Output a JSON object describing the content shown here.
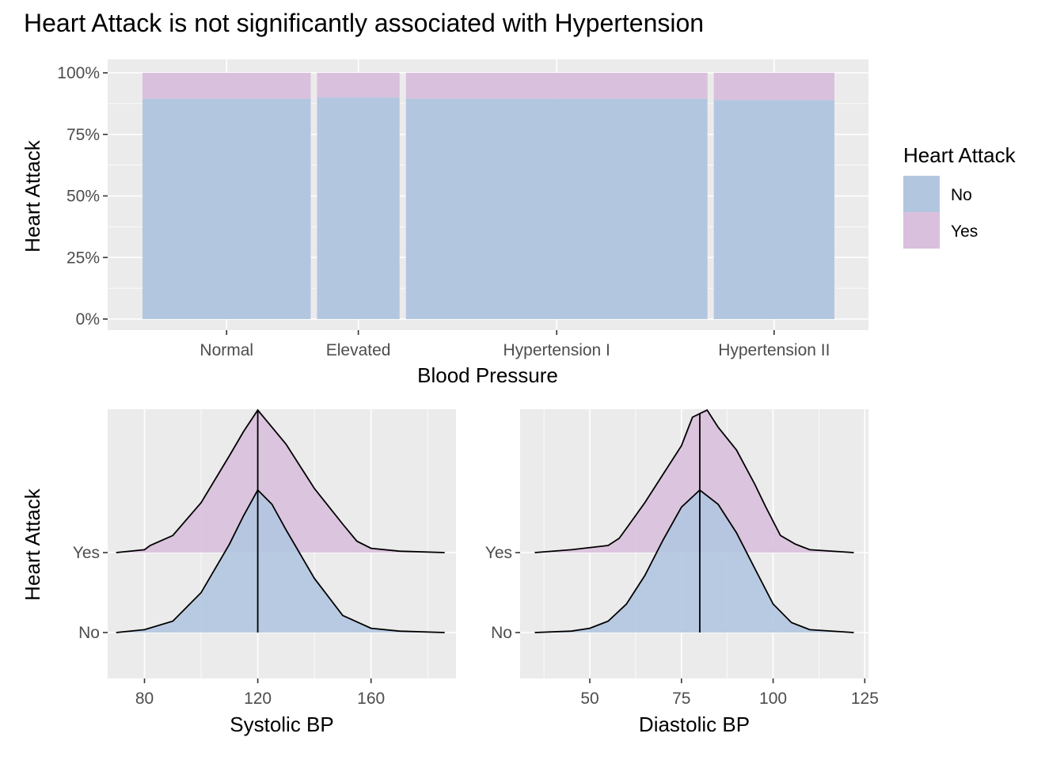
{
  "title": "Heart Attack is not significantly associated with Hypertension",
  "colors": {
    "no": "#b3c6e0",
    "yes": "#d9c0dc",
    "panel": "#ebebeb",
    "line": "#000000"
  },
  "legend": {
    "title": "Heart Attack",
    "items": [
      {
        "label": "No",
        "color": "#b3c6e0"
      },
      {
        "label": "Yes",
        "color": "#d9c0dc"
      }
    ]
  },
  "chart_data": [
    {
      "type": "bar",
      "subtype": "mosaic-stacked-percent",
      "xlabel": "Blood Pressure",
      "ylabel": "Heart Attack",
      "categories": [
        "Normal",
        "Elevated",
        "Hypertension I",
        "Hypertension II"
      ],
      "relative_widths": [
        0.265,
        0.13,
        0.475,
        0.19
      ],
      "series": [
        {
          "name": "No",
          "values": [
            0.895,
            0.9,
            0.895,
            0.89
          ]
        },
        {
          "name": "Yes",
          "values": [
            0.105,
            0.1,
            0.105,
            0.11
          ]
        }
      ],
      "yticks": [
        "0%",
        "25%",
        "50%",
        "75%",
        "100%"
      ],
      "ylim": [
        0,
        1
      ],
      "grid": true
    },
    {
      "type": "area",
      "subtype": "ridgeline-density",
      "xlabel": "Systolic BP",
      "ylabel": "Heart Attack",
      "categories": [
        "No",
        "Yes"
      ],
      "xlim": [
        67,
        190
      ],
      "xticks": [
        80,
        120,
        160
      ],
      "medians": {
        "No": 120,
        "Yes": 120
      },
      "series": [
        {
          "name": "No",
          "x": [
            70,
            80,
            90,
            100,
            110,
            115,
            120,
            125,
            130,
            140,
            150,
            160,
            170,
            186
          ],
          "density": [
            0.0,
            0.02,
            0.08,
            0.28,
            0.62,
            0.82,
            1.0,
            0.9,
            0.72,
            0.38,
            0.12,
            0.03,
            0.01,
            0.0
          ]
        },
        {
          "name": "Yes",
          "x": [
            70,
            80,
            82,
            90,
            100,
            110,
            115,
            120,
            125,
            130,
            140,
            150,
            155,
            160,
            170,
            186
          ],
          "density": [
            0.0,
            0.02,
            0.05,
            0.12,
            0.35,
            0.68,
            0.85,
            1.0,
            0.88,
            0.76,
            0.45,
            0.2,
            0.08,
            0.03,
            0.01,
            0.0
          ]
        }
      ],
      "grid": true
    },
    {
      "type": "area",
      "subtype": "ridgeline-density",
      "xlabel": "Diastolic BP",
      "categories": [
        "No",
        "Yes"
      ],
      "xlim": [
        30,
        125
      ],
      "xticks": [
        50,
        75,
        100,
        125
      ],
      "medians": {
        "No": 80,
        "Yes": 80
      },
      "series": [
        {
          "name": "No",
          "x": [
            35,
            45,
            50,
            55,
            60,
            65,
            70,
            75,
            80,
            85,
            90,
            95,
            100,
            105,
            110,
            122
          ],
          "density": [
            0.0,
            0.01,
            0.03,
            0.08,
            0.2,
            0.4,
            0.65,
            0.88,
            1.0,
            0.9,
            0.7,
            0.45,
            0.2,
            0.07,
            0.02,
            0.0
          ]
        },
        {
          "name": "Yes",
          "x": [
            35,
            45,
            55,
            58,
            60,
            65,
            70,
            75,
            78,
            82,
            85,
            90,
            95,
            98,
            102,
            106,
            110,
            122
          ],
          "density": [
            0.0,
            0.02,
            0.05,
            0.1,
            0.17,
            0.35,
            0.55,
            0.75,
            0.95,
            1.0,
            0.88,
            0.72,
            0.48,
            0.32,
            0.12,
            0.06,
            0.02,
            0.0
          ]
        }
      ],
      "grid": true
    }
  ]
}
